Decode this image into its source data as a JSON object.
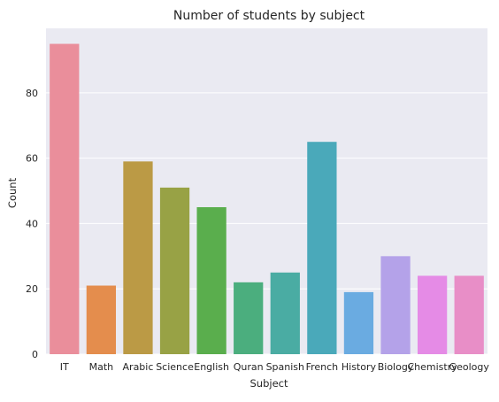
{
  "chart_data": {
    "type": "bar",
    "title": "Number of students by subject",
    "xlabel": "Subject",
    "ylabel": "Count",
    "categories": [
      "IT",
      "Math",
      "Arabic",
      "Science",
      "English",
      "Quran",
      "Spanish",
      "French",
      "History",
      "Biology",
      "Chemistry",
      "Geology"
    ],
    "values": [
      95,
      21,
      59,
      51,
      45,
      22,
      25,
      65,
      19,
      30,
      24,
      24
    ],
    "colors": [
      "#ea8e9b",
      "#e48d4d",
      "#bb9a45",
      "#98a245",
      "#5aae4d",
      "#4bae7e",
      "#4aaca3",
      "#4aa9ba",
      "#6aabe1",
      "#b4a2e9",
      "#e58be6",
      "#e88ec7"
    ],
    "ylim": [
      0,
      99.75
    ],
    "yticks": [
      0,
      20,
      40,
      60,
      80
    ],
    "grid": true,
    "background": "#eaeaf2",
    "grid_color": "#ffffff"
  }
}
